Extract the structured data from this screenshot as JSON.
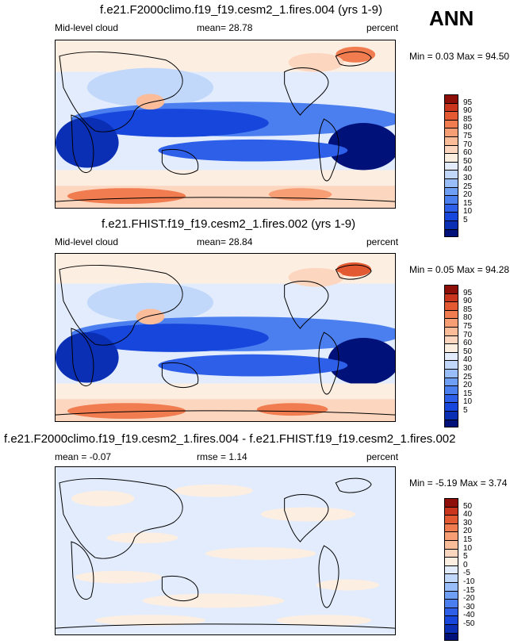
{
  "season": "ANN",
  "colors": {
    "abs_scale": [
      "#00127a",
      "#0a2fb5",
      "#1746dc",
      "#2d5fe8",
      "#4b7ff0",
      "#6e9ff5",
      "#98bdf8",
      "#c2d8fb",
      "#e2ecfc",
      "#fdeee2",
      "#fcd6bf",
      "#fbbc9a",
      "#f79e74",
      "#f07c50",
      "#e35a32",
      "#c9361d",
      "#8e0e0a"
    ],
    "diff_scale": [
      "#00127a",
      "#0a2fb5",
      "#1746dc",
      "#2d5fe8",
      "#4b7ff0",
      "#6e9ff5",
      "#98bdf8",
      "#c2d8fb",
      "#e2ecfc",
      "#fdeee2",
      "#fcd6bf",
      "#fbbc9a",
      "#f79e74",
      "#f07c50",
      "#e35a32",
      "#c9361d",
      "#8e0e0a"
    ]
  },
  "panels": [
    {
      "title": "f.e21.F2000climo.f19_f19.cesm2_1.fires.004 (yrs 1-9)",
      "variable": "Mid-level cloud",
      "stat1": "mean=  28.78",
      "units": "percent",
      "minmax": "Min =  0.03 Max =  94.50",
      "colorbar_labels": [
        "95",
        "90",
        "85",
        "80",
        "75",
        "70",
        "60",
        "50",
        "40",
        "30",
        "25",
        "20",
        "15",
        "10",
        "5"
      ],
      "map_kind": "abs"
    },
    {
      "title": "f.e21.FHIST.f19_f19.cesm2_1.fires.002 (yrs 1-9)",
      "variable": "Mid-level cloud",
      "stat1": "mean=  28.84",
      "units": "percent",
      "minmax": "Min =  0.05 Max =  94.28",
      "colorbar_labels": [
        "95",
        "90",
        "85",
        "80",
        "75",
        "70",
        "60",
        "50",
        "40",
        "30",
        "25",
        "20",
        "15",
        "10",
        "5"
      ],
      "map_kind": "abs"
    },
    {
      "title": "f.e21.F2000climo.f19_f19.cesm2_1.fires.004 - f.e21.FHIST.f19_f19.cesm2_1.fires.002",
      "variable": "mean =  -0.07",
      "stat1": "rmse =  1.14",
      "units": "percent",
      "minmax": "Min = -5.19 Max =  3.74",
      "colorbar_labels": [
        "50",
        "40",
        "30",
        "20",
        "15",
        "10",
        "5",
        "0",
        "-5",
        "-10",
        "-15",
        "-20",
        "-30",
        "-40",
        "-50"
      ],
      "map_kind": "diff"
    }
  ]
}
